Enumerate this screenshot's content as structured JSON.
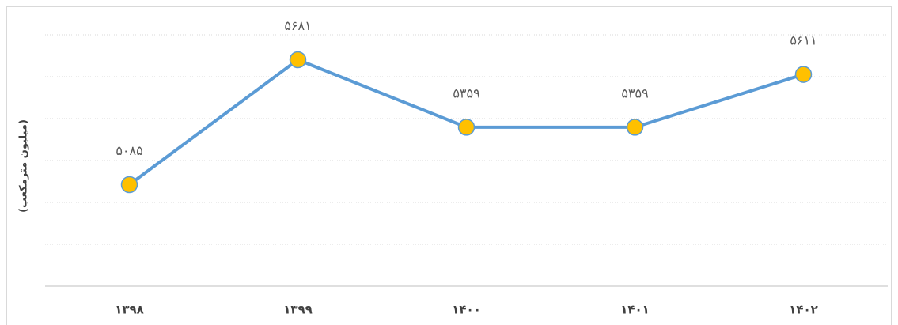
{
  "chart_data": {
    "type": "line",
    "y_label": "(میلیون مترمکعب)",
    "categories": [
      "۱۳۹۸",
      "۱۳۹۹",
      "۱۴۰۰",
      "۱۴۰۱",
      "۱۴۰۲"
    ],
    "series": [
      {
        "color": "#5b9bd5",
        "marker_color": "#ffc000",
        "values": [
          5085,
          5681,
          5359,
          5359,
          5611
        ],
        "value_labels": [
          "۵۰۸۵",
          "۵۶۸۱",
          "۵۳۵۹",
          "۵۳۵۹",
          "۵۶۱۱"
        ]
      }
    ],
    "ylim": [
      4600,
      5800
    ],
    "yticks": [
      4600,
      4800,
      5000,
      5200,
      5400,
      5600,
      5800
    ],
    "grid": true
  }
}
